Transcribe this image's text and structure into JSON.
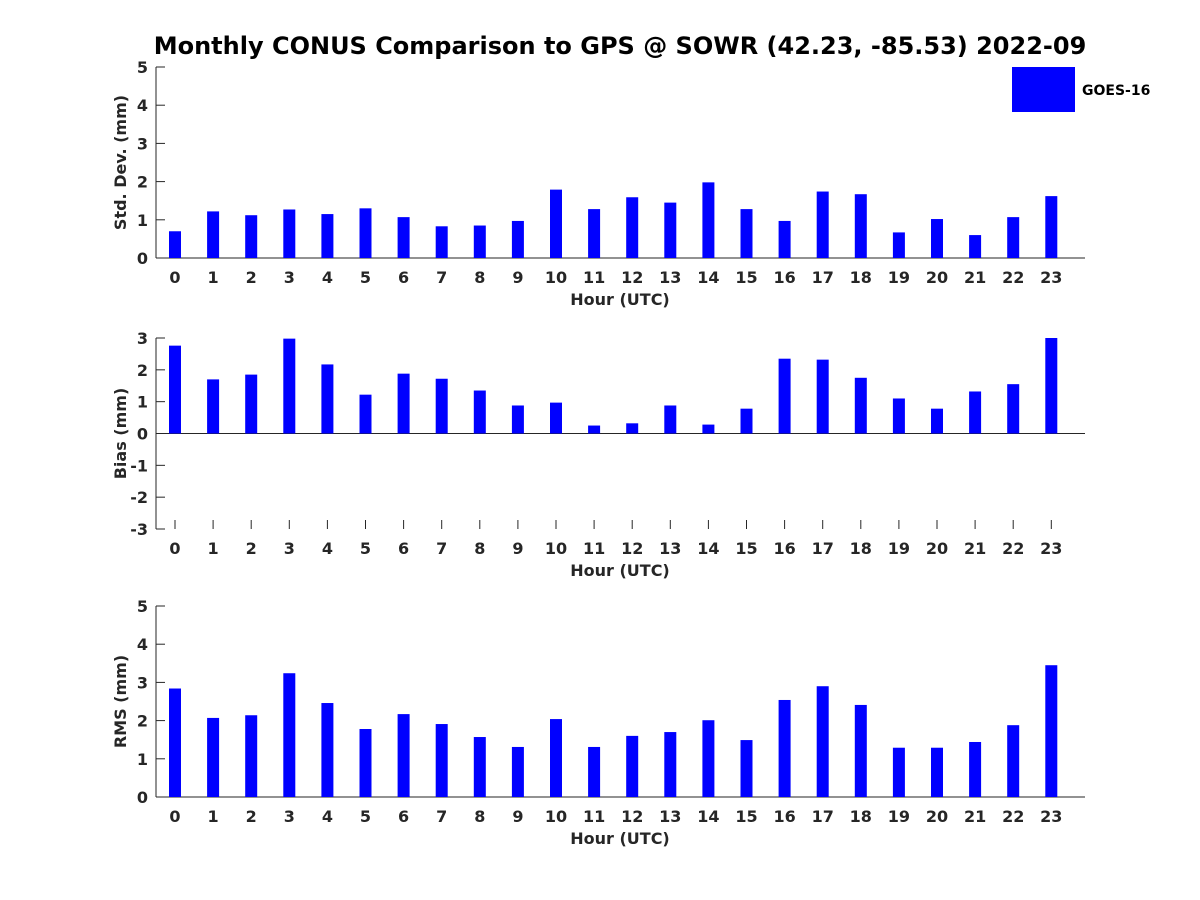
{
  "chart_data": {
    "title": "Monthly CONUS Comparison to GPS @ SOWR (42.23, -85.53) 2022-09",
    "legend": {
      "label": "GOES-16",
      "color": "#0000ff",
      "placement": "top-right"
    },
    "panels": [
      {
        "type": "bar",
        "ylabel": "Std. Dev. (mm)",
        "xlabel": "Hour (UTC)",
        "ylim": [
          0,
          5
        ],
        "yticks": [
          0,
          1,
          2,
          3,
          4,
          5
        ],
        "categories": [
          "0",
          "1",
          "2",
          "3",
          "4",
          "5",
          "6",
          "7",
          "8",
          "9",
          "10",
          "11",
          "12",
          "13",
          "14",
          "15",
          "16",
          "17",
          "18",
          "19",
          "20",
          "21",
          "22",
          "23"
        ],
        "series": [
          {
            "name": "GOES-16",
            "values": [
              0.7,
              1.22,
              1.12,
              1.27,
              1.15,
              1.3,
              1.07,
              0.83,
              0.85,
              0.97,
              1.79,
              1.28,
              1.59,
              1.45,
              1.98,
              1.28,
              0.97,
              1.74,
              1.67,
              0.67,
              1.02,
              0.6,
              1.07,
              1.62
            ]
          }
        ]
      },
      {
        "type": "bar",
        "ylabel": "Bias (mm)",
        "xlabel": "Hour (UTC)",
        "ylim": [
          -3,
          3
        ],
        "yticks": [
          -3,
          -2,
          -1,
          0,
          1,
          2,
          3
        ],
        "categories": [
          "0",
          "1",
          "2",
          "3",
          "4",
          "5",
          "6",
          "7",
          "8",
          "9",
          "10",
          "11",
          "12",
          "13",
          "14",
          "15",
          "16",
          "17",
          "18",
          "19",
          "20",
          "21",
          "22",
          "23"
        ],
        "series": [
          {
            "name": "GOES-16",
            "values": [
              2.76,
              1.7,
              1.85,
              2.98,
              2.17,
              1.22,
              1.88,
              1.72,
              1.35,
              0.88,
              0.97,
              0.25,
              0.32,
              0.88,
              0.28,
              0.78,
              2.35,
              2.32,
              1.75,
              1.1,
              0.78,
              1.32,
              1.55,
              3.0
            ]
          }
        ]
      },
      {
        "type": "bar",
        "ylabel": "RMS (mm)",
        "xlabel": "Hour (UTC)",
        "ylim": [
          0,
          5
        ],
        "yticks": [
          0,
          1,
          2,
          3,
          4,
          5
        ],
        "categories": [
          "0",
          "1",
          "2",
          "3",
          "4",
          "5",
          "6",
          "7",
          "8",
          "9",
          "10",
          "11",
          "12",
          "13",
          "14",
          "15",
          "16",
          "17",
          "18",
          "19",
          "20",
          "21",
          "22",
          "23"
        ],
        "series": [
          {
            "name": "GOES-16",
            "values": [
              2.84,
              2.07,
              2.14,
              3.24,
              2.46,
              1.78,
              2.17,
              1.91,
              1.57,
              1.31,
              2.04,
              1.31,
              1.6,
              1.7,
              2.01,
              1.49,
              2.54,
              2.9,
              2.41,
              1.29,
              1.29,
              1.44,
              1.88,
              3.45
            ]
          }
        ]
      }
    ]
  }
}
